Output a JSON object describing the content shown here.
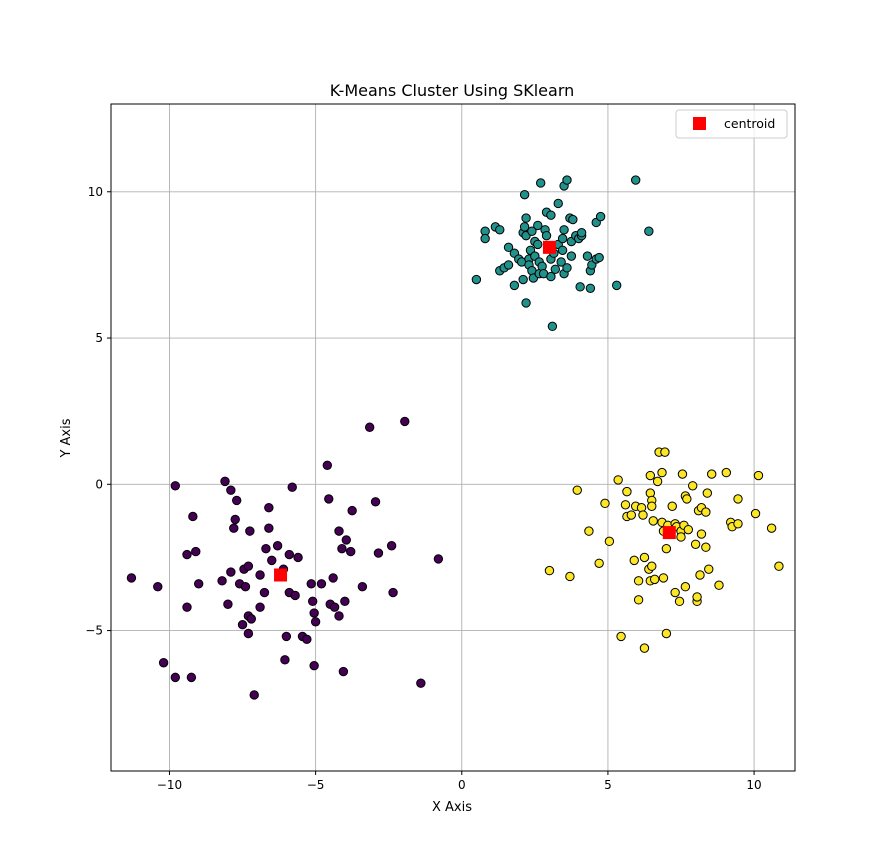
{
  "chart_data": {
    "type": "scatter",
    "title": "K-Means Cluster Using SKlearn",
    "xlabel": "X Axis",
    "ylabel": "Y Axis",
    "xlim": [
      -12,
      11.4
    ],
    "ylim": [
      -9.8,
      13
    ],
    "xticks": [
      -10,
      -5,
      0,
      5,
      10
    ],
    "yticks": [
      -5,
      0,
      5,
      10
    ],
    "xtick_labels": [
      "−10",
      "−5",
      "0",
      "5",
      "10"
    ],
    "ytick_labels": [
      "−5",
      "0",
      "5",
      "10"
    ],
    "grid": true,
    "legend": {
      "placement": "top-right",
      "entries": [
        {
          "label": "centroid",
          "color": "#ff0000",
          "marker": "square"
        }
      ]
    },
    "series": [
      {
        "color": "#440154",
        "points": [
          [
            -11.3,
            -3.2
          ],
          [
            -10.4,
            -3.5
          ],
          [
            -10.2,
            -6.1
          ],
          [
            -9.8,
            -6.6
          ],
          [
            -9.8,
            -0.05
          ],
          [
            -9.4,
            -2.4
          ],
          [
            -9.4,
            -4.2
          ],
          [
            -9.25,
            -6.6
          ],
          [
            -9.2,
            -1.1
          ],
          [
            -9.1,
            -2.3
          ],
          [
            -9.0,
            -3.4
          ],
          [
            -8.2,
            -3.3
          ],
          [
            -8.1,
            0.1
          ],
          [
            -8.0,
            -4.1
          ],
          [
            -7.9,
            -3.0
          ],
          [
            -7.9,
            -0.2
          ],
          [
            -7.8,
            -1.5
          ],
          [
            -7.75,
            -1.2
          ],
          [
            -7.7,
            -0.55
          ],
          [
            -7.6,
            -3.4
          ],
          [
            -7.5,
            -4.8
          ],
          [
            -7.45,
            -2.9
          ],
          [
            -7.4,
            -3.5
          ],
          [
            -7.3,
            -5.1
          ],
          [
            -7.3,
            -2.8
          ],
          [
            -7.3,
            -4.5
          ],
          [
            -7.25,
            -1.6
          ],
          [
            -7.2,
            -4.6
          ],
          [
            -7.1,
            -7.2
          ],
          [
            -6.9,
            -4.2
          ],
          [
            -6.9,
            -3.1
          ],
          [
            -6.75,
            -3.7
          ],
          [
            -6.7,
            -2.2
          ],
          [
            -6.6,
            -1.5
          ],
          [
            -6.6,
            -0.8
          ],
          [
            -6.5,
            -2.6
          ],
          [
            -6.3,
            -2.1
          ],
          [
            -6.1,
            -2.9
          ],
          [
            -6.05,
            -6.0
          ],
          [
            -6.0,
            -5.2
          ],
          [
            -5.9,
            -3.7
          ],
          [
            -5.9,
            -2.4
          ],
          [
            -5.8,
            -0.1
          ],
          [
            -5.7,
            -3.8
          ],
          [
            -5.6,
            -2.5
          ],
          [
            -5.45,
            -5.2
          ],
          [
            -5.3,
            -5.3
          ],
          [
            -5.15,
            -3.4
          ],
          [
            -5.1,
            -4.0
          ],
          [
            -5.05,
            -4.4
          ],
          [
            -5.05,
            -6.2
          ],
          [
            -5.0,
            -4.7
          ],
          [
            -4.8,
            -3.4
          ],
          [
            -4.6,
            0.65
          ],
          [
            -4.55,
            -0.5
          ],
          [
            -4.5,
            -4.1
          ],
          [
            -4.4,
            -3.2
          ],
          [
            -4.35,
            -4.2
          ],
          [
            -4.2,
            -4.5
          ],
          [
            -4.2,
            -1.6
          ],
          [
            -4.1,
            -2.2
          ],
          [
            -4.05,
            -6.4
          ],
          [
            -4.0,
            -4.0
          ],
          [
            -3.95,
            -1.9
          ],
          [
            -3.8,
            -2.3
          ],
          [
            -3.75,
            -0.9
          ],
          [
            -3.4,
            -3.5
          ],
          [
            -3.15,
            1.95
          ],
          [
            -2.95,
            -0.6
          ],
          [
            -2.85,
            -2.35
          ],
          [
            -2.4,
            -2.1
          ],
          [
            -2.35,
            -3.7
          ],
          [
            -1.95,
            2.15
          ],
          [
            -1.4,
            -6.8
          ],
          [
            -0.8,
            -2.55
          ]
        ]
      },
      {
        "color": "#21918c",
        "points": [
          [
            0.5,
            7.0
          ],
          [
            0.8,
            8.65
          ],
          [
            0.8,
            8.4
          ],
          [
            1.15,
            8.8
          ],
          [
            1.3,
            7.3
          ],
          [
            1.3,
            8.7
          ],
          [
            1.45,
            7.4
          ],
          [
            1.6,
            7.5
          ],
          [
            1.6,
            8.1
          ],
          [
            1.8,
            6.8
          ],
          [
            1.8,
            7.9
          ],
          [
            1.95,
            7.7
          ],
          [
            2.05,
            7.6
          ],
          [
            2.1,
            8.6
          ],
          [
            2.1,
            7.0
          ],
          [
            2.15,
            8.8
          ],
          [
            2.15,
            9.9
          ],
          [
            2.2,
            8.5
          ],
          [
            2.2,
            6.2
          ],
          [
            2.2,
            9.1
          ],
          [
            2.3,
            7.7
          ],
          [
            2.3,
            7.5
          ],
          [
            2.35,
            8.0
          ],
          [
            2.4,
            7.3
          ],
          [
            2.4,
            8.65
          ],
          [
            2.45,
            7.05
          ],
          [
            2.5,
            7.8
          ],
          [
            2.5,
            8.3
          ],
          [
            2.6,
            8.2
          ],
          [
            2.6,
            8.85
          ],
          [
            2.65,
            7.6
          ],
          [
            2.65,
            7.2
          ],
          [
            2.7,
            10.3
          ],
          [
            2.75,
            7.45
          ],
          [
            2.8,
            7.2
          ],
          [
            2.85,
            8.7
          ],
          [
            2.9,
            9.3
          ],
          [
            2.9,
            8.5
          ],
          [
            3.05,
            7.1
          ],
          [
            3.05,
            9.2
          ],
          [
            3.05,
            7.7
          ],
          [
            3.1,
            5.4
          ],
          [
            3.15,
            7.9
          ],
          [
            3.2,
            7.35
          ],
          [
            3.3,
            8.2
          ],
          [
            3.3,
            9.6
          ],
          [
            3.4,
            7.6
          ],
          [
            3.45,
            8.4
          ],
          [
            3.45,
            8.0
          ],
          [
            3.5,
            8.7
          ],
          [
            3.5,
            7.2
          ],
          [
            3.5,
            10.2
          ],
          [
            3.6,
            10.4
          ],
          [
            3.6,
            7.4
          ],
          [
            3.7,
            9.1
          ],
          [
            3.75,
            7.8
          ],
          [
            3.75,
            8.3
          ],
          [
            3.8,
            9.05
          ],
          [
            3.9,
            8.5
          ],
          [
            4.0,
            8.4
          ],
          [
            4.05,
            6.75
          ],
          [
            4.1,
            8.5
          ],
          [
            4.1,
            8.6
          ],
          [
            4.3,
            7.8
          ],
          [
            4.4,
            6.7
          ],
          [
            4.4,
            7.3
          ],
          [
            4.45,
            7.5
          ],
          [
            4.6,
            8.95
          ],
          [
            4.6,
            7.7
          ],
          [
            4.7,
            7.75
          ],
          [
            4.75,
            9.15
          ],
          [
            5.3,
            6.8
          ],
          [
            5.95,
            10.4
          ],
          [
            6.4,
            8.65
          ]
        ]
      },
      {
        "color": "#fde725",
        "points": [
          [
            3.0,
            -2.95
          ],
          [
            3.7,
            -3.15
          ],
          [
            3.95,
            -0.2
          ],
          [
            4.35,
            -1.6
          ],
          [
            4.7,
            -2.7
          ],
          [
            4.9,
            -0.65
          ],
          [
            5.05,
            -1.95
          ],
          [
            5.35,
            0.15
          ],
          [
            5.45,
            -5.2
          ],
          [
            5.6,
            -0.7
          ],
          [
            5.65,
            -0.25
          ],
          [
            5.65,
            -1.1
          ],
          [
            5.8,
            -1.05
          ],
          [
            5.9,
            -2.6
          ],
          [
            5.95,
            -0.75
          ],
          [
            6.05,
            -3.3
          ],
          [
            6.05,
            -3.95
          ],
          [
            6.15,
            -0.8
          ],
          [
            6.2,
            -1.05
          ],
          [
            6.25,
            -5.6
          ],
          [
            6.25,
            -2.5
          ],
          [
            6.4,
            -2.9
          ],
          [
            6.45,
            -3.3
          ],
          [
            6.45,
            -0.3
          ],
          [
            6.45,
            0.3
          ],
          [
            6.5,
            -0.55
          ],
          [
            6.5,
            -0.75
          ],
          [
            6.5,
            -2.8
          ],
          [
            6.55,
            -1.25
          ],
          [
            6.6,
            -3.25
          ],
          [
            6.7,
            0.1
          ],
          [
            6.75,
            1.1
          ],
          [
            6.85,
            -1.3
          ],
          [
            6.85,
            0.4
          ],
          [
            6.9,
            -1.6
          ],
          [
            6.9,
            -3.2
          ],
          [
            6.95,
            1.1
          ],
          [
            7.0,
            -5.1
          ],
          [
            7.0,
            -2.2
          ],
          [
            7.05,
            -1.4
          ],
          [
            7.1,
            -1.65
          ],
          [
            7.2,
            -0.75
          ],
          [
            7.3,
            -1.35
          ],
          [
            7.3,
            -3.7
          ],
          [
            7.35,
            -1.45
          ],
          [
            7.45,
            -4.0
          ],
          [
            7.5,
            -1.6
          ],
          [
            7.5,
            -1.8
          ],
          [
            7.55,
            0.35
          ],
          [
            7.6,
            -1.4
          ],
          [
            7.65,
            -3.5
          ],
          [
            7.65,
            -0.4
          ],
          [
            7.7,
            -0.5
          ],
          [
            7.75,
            -1.55
          ],
          [
            7.9,
            -0.05
          ],
          [
            8.0,
            -2.05
          ],
          [
            8.05,
            -4.0
          ],
          [
            8.05,
            -3.85
          ],
          [
            8.1,
            -0.9
          ],
          [
            8.15,
            -3.1
          ],
          [
            8.2,
            -1.7
          ],
          [
            8.2,
            -0.8
          ],
          [
            8.35,
            -2.15
          ],
          [
            8.35,
            -0.95
          ],
          [
            8.4,
            -0.3
          ],
          [
            8.45,
            -2.9
          ],
          [
            8.55,
            0.35
          ],
          [
            8.8,
            -3.45
          ],
          [
            9.05,
            0.4
          ],
          [
            9.2,
            -1.3
          ],
          [
            9.25,
            -1.45
          ],
          [
            9.45,
            -0.5
          ],
          [
            9.45,
            -1.35
          ],
          [
            10.05,
            -1.0
          ],
          [
            10.15,
            0.3
          ],
          [
            10.6,
            -1.5
          ],
          [
            10.85,
            -2.8
          ]
        ]
      }
    ],
    "centroids": {
      "label": "centroid",
      "color": "#ff0000",
      "points": [
        [
          -6.2,
          -3.1
        ],
        [
          3.0,
          8.1
        ],
        [
          7.1,
          -1.65
        ]
      ]
    }
  }
}
